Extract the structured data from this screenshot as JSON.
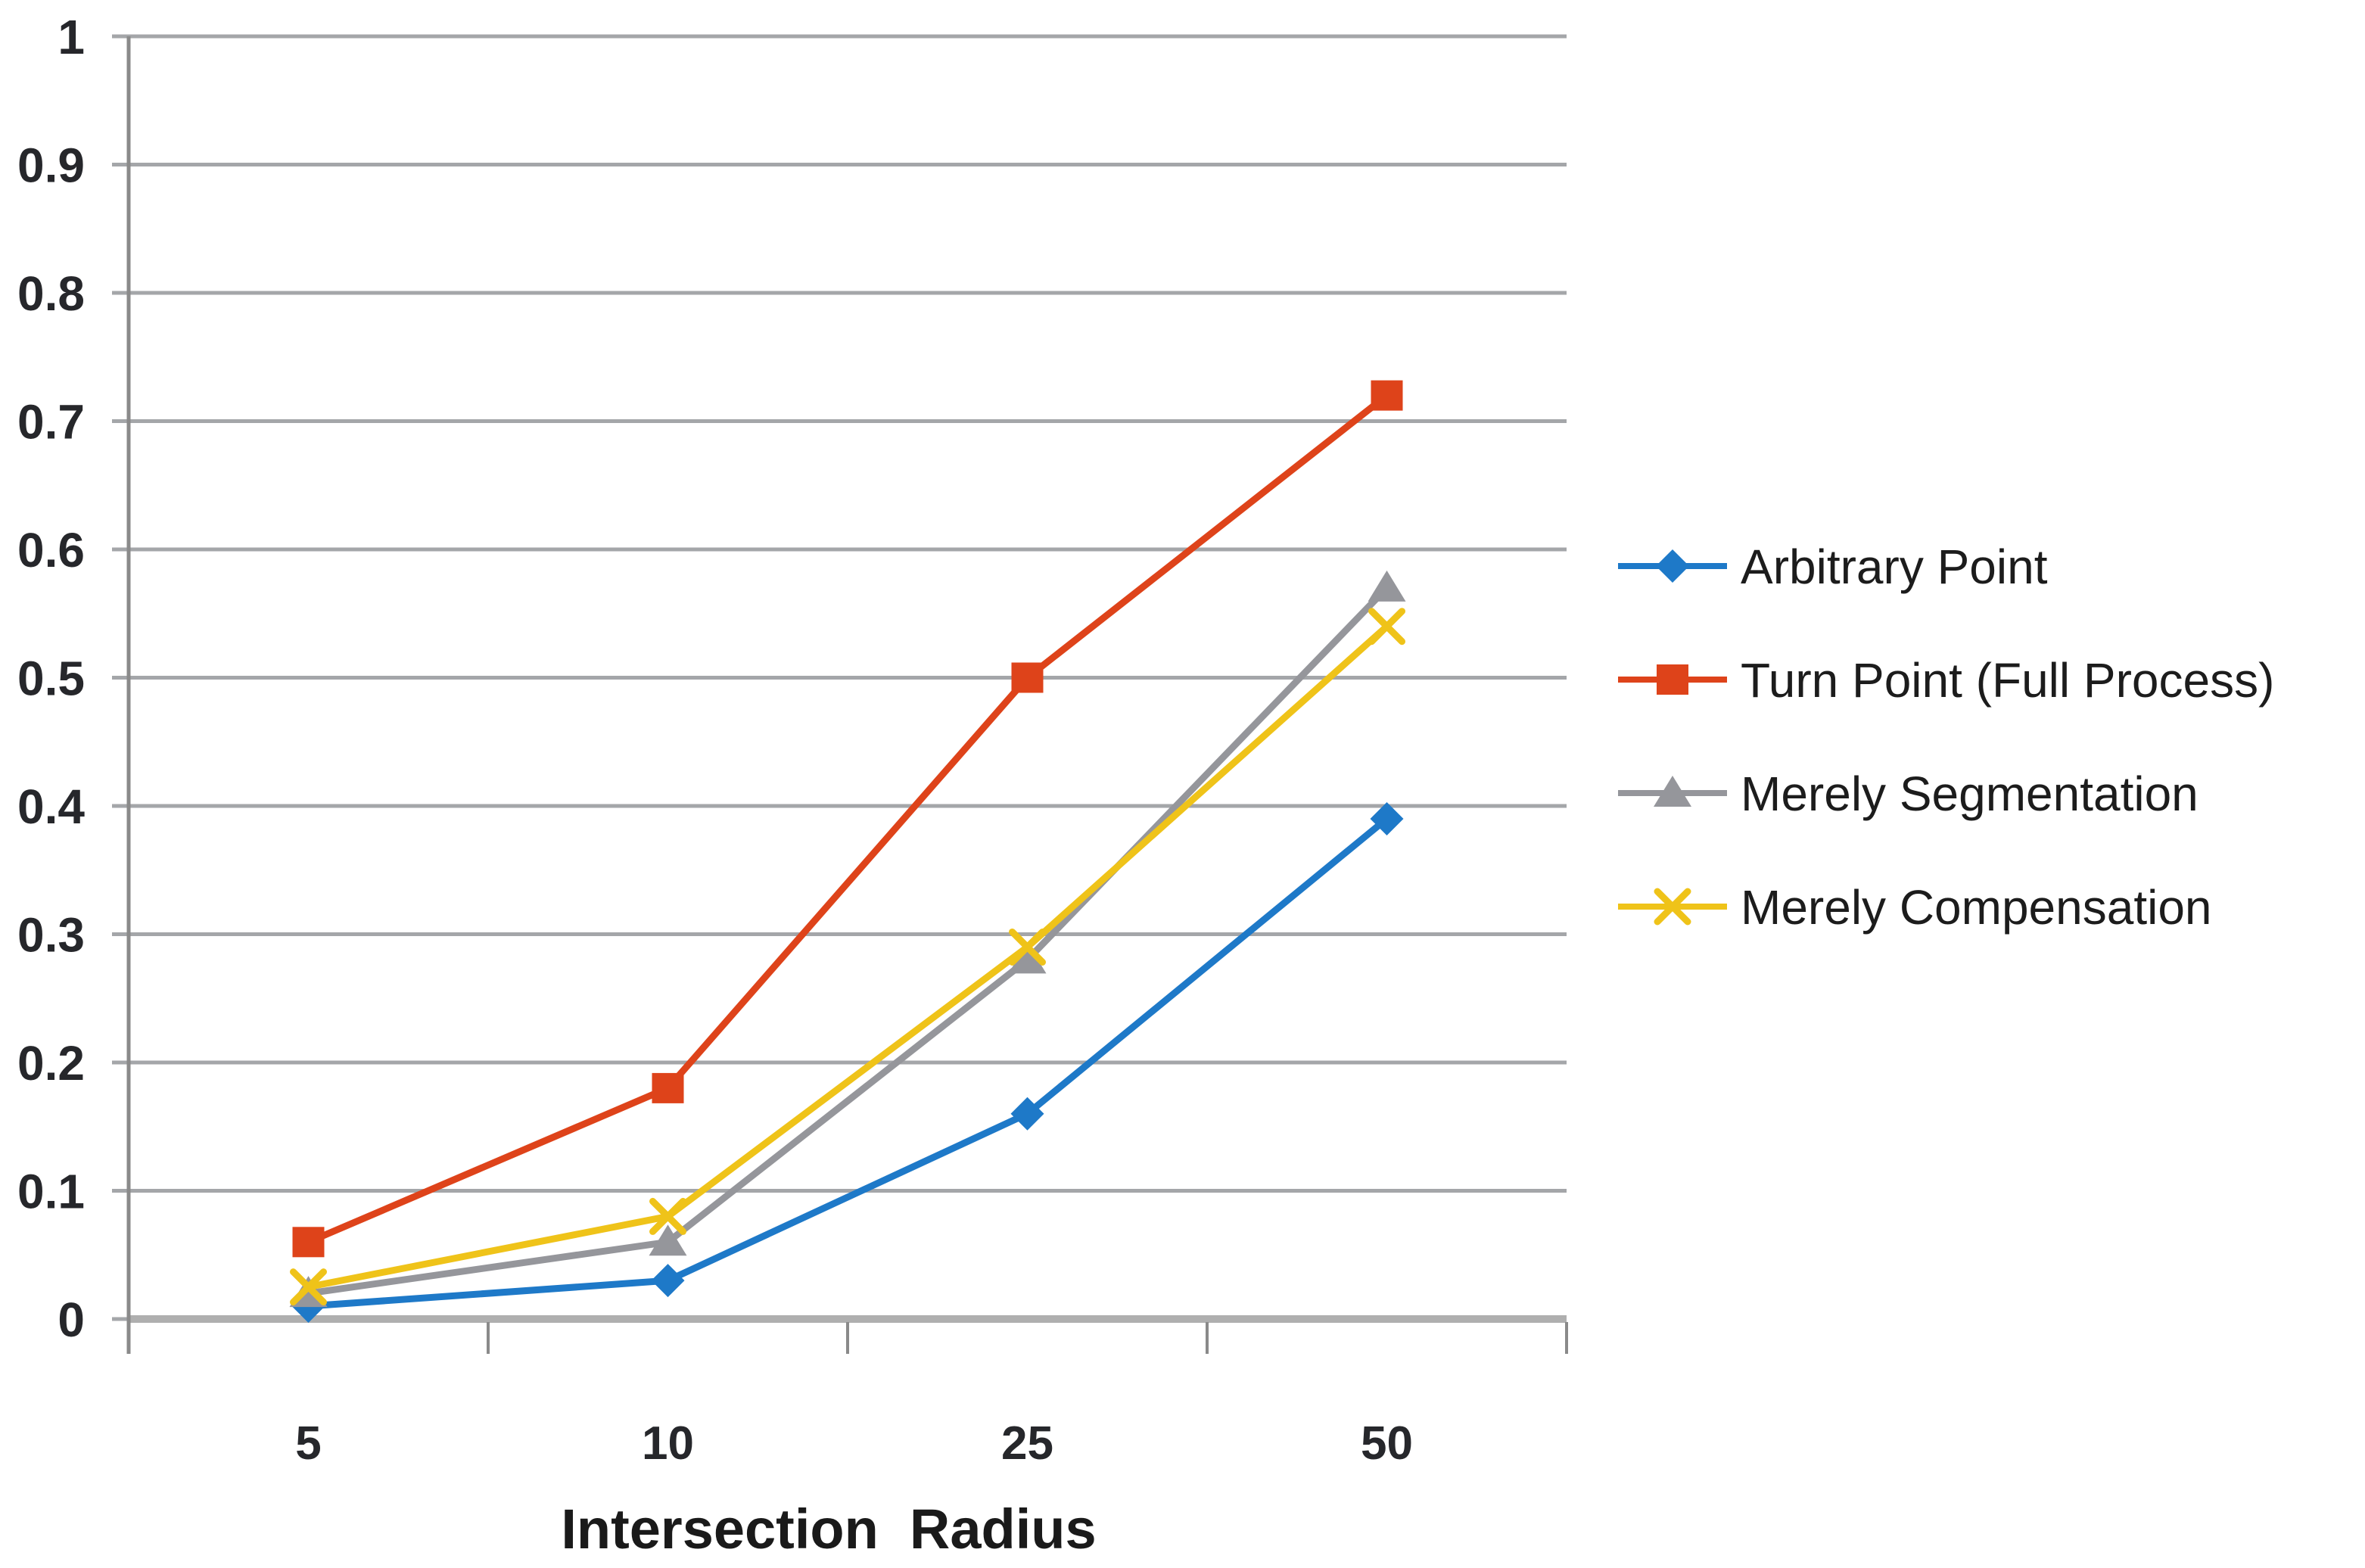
{
  "figure": {
    "background": "#FFFFFF"
  },
  "chart_data": {
    "type": "line",
    "title": "",
    "xlabel": "Intersection  Radius",
    "ylabel": "",
    "categories": [
      "5",
      "10",
      "25",
      "50"
    ],
    "ylim": [
      0,
      1
    ],
    "y_ticks": [
      {
        "value": 0,
        "label": "0"
      },
      {
        "value": 0.1,
        "label": "0.1"
      },
      {
        "value": 0.2,
        "label": "0.2"
      },
      {
        "value": 0.3,
        "label": "0.3"
      },
      {
        "value": 0.4,
        "label": "0.4"
      },
      {
        "value": 0.5,
        "label": "0.5"
      },
      {
        "value": 0.6,
        "label": "0.6"
      },
      {
        "value": 0.7,
        "label": "0.7"
      },
      {
        "value": 0.8,
        "label": "0.8"
      },
      {
        "value": 0.9,
        "label": "0.9"
      },
      {
        "value": 1,
        "label": "1"
      }
    ],
    "grid": "horizontal",
    "legend_position": "right",
    "series": [
      {
        "name": "Arbitrary Point",
        "marker": "diamond",
        "color": "#1E79C8",
        "values": [
          0.01,
          0.03,
          0.16,
          0.39
        ]
      },
      {
        "name": "Turn Point (Full Process)",
        "marker": "square",
        "color": "#DE431A",
        "values": [
          0.06,
          0.18,
          0.5,
          0.72
        ]
      },
      {
        "name": "Merely Segmentation",
        "marker": "triangle",
        "color": "#95969B",
        "values": [
          0.02,
          0.06,
          0.28,
          0.57
        ]
      },
      {
        "name": "Merely Compensation",
        "marker": "x",
        "color": "#EFC319",
        "values": [
          0.025,
          0.08,
          0.29,
          0.54
        ]
      }
    ],
    "colors": {
      "gridline": "#A4A6A9",
      "axis_line": "#AFAFAF",
      "tick": "#8A8A8A",
      "label_text": "#26272B",
      "legend_text": "#1C1C1C",
      "title_text": "#1A1A1A"
    }
  }
}
